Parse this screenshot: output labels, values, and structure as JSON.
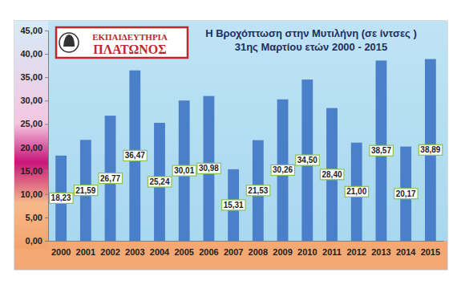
{
  "chart_data": {
    "type": "bar",
    "title": "Η Βροχόπτωση στην Μυτιλήνη (σε ίντσες )",
    "subtitle": "31ης Μαρτίου ετών 2000 - 2015",
    "annotations": [
      "ΕΚΠΑΙΔΕΥΤΗΡΙΑ",
      "ΠΛΑΤΩΝΟΣ"
    ],
    "categories": [
      "2000",
      "2001",
      "2002",
      "2003",
      "2004",
      "2005",
      "2006",
      "2007",
      "2008",
      "2009",
      "2010",
      "2011",
      "2012",
      "2013",
      "2014",
      "2015"
    ],
    "values": [
      18.23,
      21.59,
      26.77,
      36.47,
      25.24,
      30.01,
      30.98,
      15.31,
      21.53,
      30.26,
      34.5,
      28.4,
      21.0,
      38.57,
      20.17,
      38.89
    ],
    "value_labels": [
      "18,23",
      "21,59",
      "26,77",
      "36,47",
      "25,24",
      "30,01",
      "30,98",
      "15,31",
      "21,53",
      "30,26",
      "34,50",
      "28,40",
      "21,00",
      "38,57",
      "20,17",
      "38,89"
    ],
    "color": "#4a7fc9",
    "ylim": [
      0,
      45
    ],
    "yticks": [
      {
        "value": 0,
        "label": "0,00"
      },
      {
        "value": 5,
        "label": "5,00"
      },
      {
        "value": 10,
        "label": "10,00"
      },
      {
        "value": 15,
        "label": "15,00"
      },
      {
        "value": 20,
        "label": "20,00"
      },
      {
        "value": 25,
        "label": "25,00"
      },
      {
        "value": 30,
        "label": "30,00"
      },
      {
        "value": 35,
        "label": "35,00"
      },
      {
        "value": 40,
        "label": "40,00"
      },
      {
        "value": 45,
        "label": "45,00"
      }
    ],
    "grid": false,
    "data_labels": true
  }
}
